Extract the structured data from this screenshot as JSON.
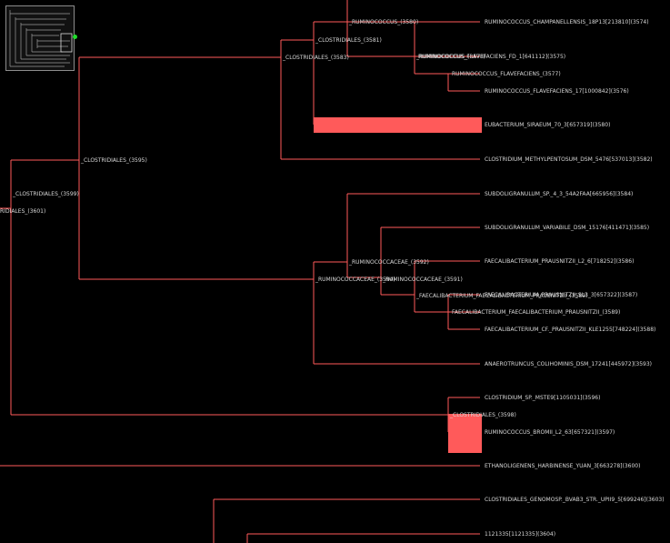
{
  "colors": {
    "background": "#000000",
    "branch": "#ff5a5a",
    "highlight": "#ff5a5a",
    "label": "#d9d9d9",
    "minimap_dot": "#1fdc2a"
  },
  "nodes": {
    "ruminococcus_top": "_RUMINOCOCCUS_(3580)",
    "ruminococcus_inner": "_RUMINOCOCCUS_(3578)",
    "clostridiales_3581": "_CLOSTRIDIALES_(3581)",
    "clostridiales_3583": "_CLOSTRIDIALES_(3583)",
    "clostridiales_3595": "_CLOSTRIDIALES_(3595)",
    "clostridiales_3599": "_CLOSTRIDIALES_(3599)",
    "clostridiales_3601": "RIDIALES_(3601)",
    "ruminococcaceae_3594": "_RUMINOCOCCACEAE_(3594)",
    "ruminococcaceae_3592": "_RUMINOCOCCACEAE_(3592)",
    "ruminococcaceae_3591": "_RUMINOCOCCACEAE_(3591)",
    "faecalibacterium_3589": "_FAECALIBACTERIUM_FAECALIBACTERIUM_PRAUSNITZII_(3589)",
    "faecalibacterium_3590": "_FAECALIBACTERIUM_FAECALIBACTERIUM_PRAUSNITZII_(3590)",
    "clostridiales_3598": "_CLOSTRIDIALES_(3598)"
  },
  "leaves": [
    "RUMINOCOCCUS_CHAMPANELLENSIS_18P13[213810](3574)",
    "RUMINOCOCCUS_FLAVEFACIENS_FD_1[641112](3575)",
    "RUMINOCOCCUS_FLAVEFACIENS_(3577)",
    "RUMINOCOCCUS_FLAVEFACIENS_17[1000842](3576)",
    "EUBACTERIUM_SIRAEUM_70_3[657319](3580)",
    "CLOSTRIDIUM_METHYLPENTOSUM_DSM_5476[537013](3582)",
    "SUBDOLIGRANULUM_SP._4_3_54A2FAA[665956](3584)",
    "SUBDOLIGRANULUM_VARIABILE_DSM_15176[411471](3585)",
    "FAECALIBACTERIUM_PRAUSNITZII_L2_6[718252](3586)",
    "FAECALIBACTERIUM_PRAUSNITZII_SL3_3[657322](3587)",
    "FAECALIBACTERIUM_FAECALIBACTERIUM_PRAUSNITZII_(3589)",
    "FAECALIBACTERIUM_CF._PRAUSNITZII_KLE1255[748224](3588)",
    "ANAEROTRUNCUS_COLIHOMINIS_DSM_17241[445972](3593)",
    "CLOSTRIDIUM_SP._MSTE9[1105031](3596)",
    "RUMINOCOCCUS_BROMII_L2_63[657321](3597)",
    "ETHANOLIGENENS_HARBINENSE_YUAN_3[663278](3600)",
    "CLOSTRIDIALES_GENOMOSP._BVAB3_STR._UPII9_5[699246](3603)",
    "1121335[1121335](3604)"
  ]
}
